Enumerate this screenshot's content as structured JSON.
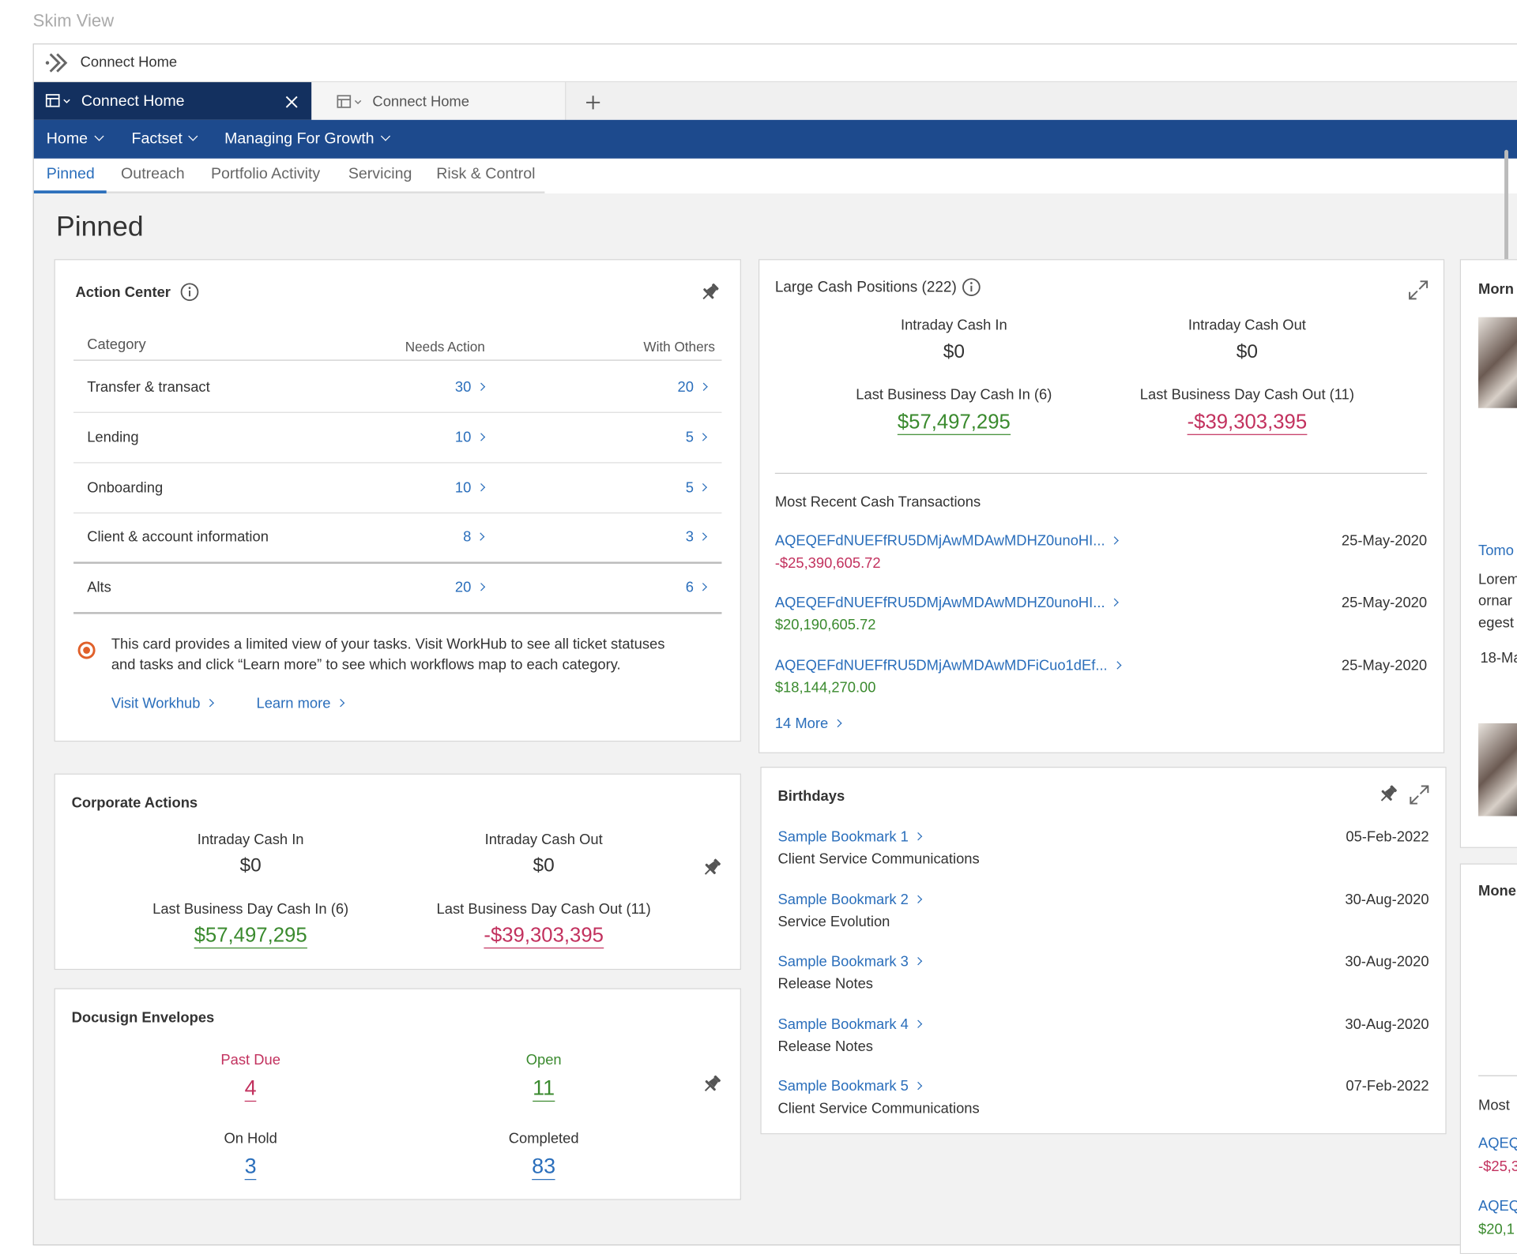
{
  "window_title": "Skim View",
  "app": {
    "title": "Connect Home"
  },
  "tabs": [
    {
      "label": "Connect Home"
    },
    {
      "label": "Connect Home"
    }
  ],
  "nav": [
    "Home",
    "Factset",
    "Managing For Growth"
  ],
  "subnav": [
    "Pinned",
    "Outreach",
    "Portfolio Activity",
    "Servicing",
    "Risk & Control"
  ],
  "page_title": "Pinned",
  "action_center": {
    "title": "Action Center",
    "columns": [
      "Category",
      "Needs Action",
      "With Others"
    ],
    "rows": [
      {
        "category": "Transfer & transact",
        "needs_action": 30,
        "with_others": 20
      },
      {
        "category": "Lending",
        "needs_action": 10,
        "with_others": 5
      },
      {
        "category": "Onboarding",
        "needs_action": 10,
        "with_others": 5
      },
      {
        "category": "Client & account information",
        "needs_action": 8,
        "with_others": 3
      },
      {
        "category": "Alts",
        "needs_action": 20,
        "with_others": 6
      }
    ],
    "note": [
      "This card provides a limited view of your tasks. Visit WorkHub to see all ticket statuses",
      "and tasks and click “Learn more” to see which workflows map to each category."
    ],
    "links": [
      "Visit Workhub",
      "Learn more"
    ]
  },
  "large_cash": {
    "title": "Large Cash Positions (222)",
    "stats": [
      {
        "label": "Intraday Cash In",
        "value": "$0"
      },
      {
        "label": "Intraday Cash Out",
        "value": "$0"
      },
      {
        "label": "Last Business Day Cash In (6)",
        "value": "$57,497,295"
      },
      {
        "label": "Last Business Day Cash Out (11)",
        "value": "-$39,303,395"
      }
    ],
    "transactions_title": "Most Recent Cash Transactions",
    "transactions": [
      {
        "id": "AQEQEFdNUEFfRU5DMjAwMDAwMDHZ0unoHI...",
        "amount": "-$25,390,605.72",
        "date": "25-May-2020"
      },
      {
        "id": "AQEQEFdNUEFfRU5DMjAwMDAwMDHZ0unoHI...",
        "amount": "$20,190,605.72",
        "date": "25-May-2020"
      },
      {
        "id": "AQEQEFdNUEFfRU5DMjAwMDAwMDFiCuo1dEf...",
        "amount": "$18,144,270.00",
        "date": "25-May-2020"
      }
    ],
    "more": "14 More"
  },
  "birthdays": {
    "title": "Birthdays",
    "items": [
      {
        "name": "Sample Bookmark 1",
        "subtitle": "Client Service Communications",
        "date": "05-Feb-2022"
      },
      {
        "name": "Sample Bookmark 2",
        "subtitle": "Service Evolution",
        "date": "30-Aug-2020"
      },
      {
        "name": "Sample Bookmark 3",
        "subtitle": "Release Notes",
        "date": "30-Aug-2020"
      },
      {
        "name": "Sample Bookmark 4",
        "subtitle": "Release Notes",
        "date": "30-Aug-2020"
      },
      {
        "name": "Sample Bookmark 5",
        "subtitle": "Client Service Communications",
        "date": "07-Feb-2022"
      }
    ]
  },
  "corporate_actions": {
    "title": "Corporate Actions",
    "stats": [
      {
        "label": "Intraday Cash In",
        "value": "$0"
      },
      {
        "label": "Intraday Cash Out",
        "value": "$0"
      },
      {
        "label": "Last Business Day Cash In (6)",
        "value": "$57,497,295"
      },
      {
        "label": "Last Business Day Cash Out (11)",
        "value": "-$39,303,395"
      }
    ]
  },
  "docusign": {
    "title": "Docusign Envelopes",
    "stats": [
      {
        "label": "Past Due",
        "value": 4
      },
      {
        "label": "Open",
        "value": 11
      },
      {
        "label": "On Hold",
        "value": 3
      },
      {
        "label": "Completed",
        "value": 83
      }
    ]
  },
  "right_column": {
    "card1": {
      "title": "Morn",
      "link": "Tomo",
      "lines": [
        "Lorem",
        "ornar",
        "egest"
      ],
      "date": "18-Ma"
    },
    "card2": {
      "title": "Mone",
      "section": "Most",
      "items": [
        {
          "id": "AQEQ",
          "amount": "-$25,3"
        },
        {
          "id": "AQEQ",
          "amount": "$20,1"
        }
      ]
    }
  }
}
